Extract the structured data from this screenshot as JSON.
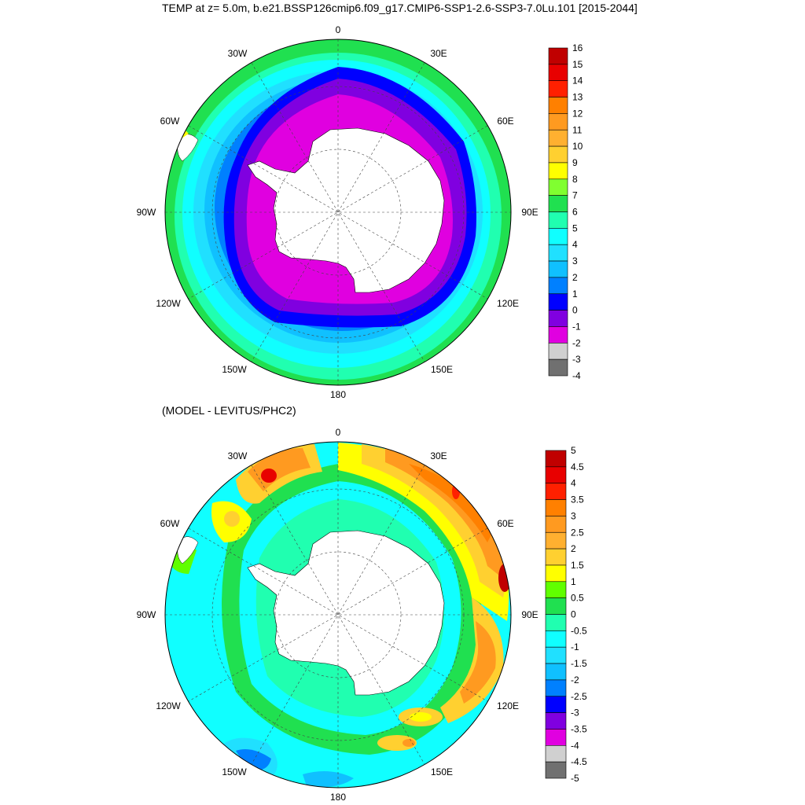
{
  "panel1": {
    "title": "TEMP at z=   5.0m, b.e21.BSSP126cmip6.f09_g17.CMIP6-SSP1-2.6-SSP3-7.0Lu.101 [2015-2044]",
    "lon_labels": {
      "n": "0",
      "ne": "30E",
      "ene": "60E",
      "e": "90E",
      "ese": "120E",
      "se": "150E",
      "s": "180",
      "sw": "150W",
      "wsw": "120W",
      "w": "90W",
      "wnw": "60W",
      "nw": "30W"
    },
    "colorbar": {
      "ticks": [
        "16",
        "15",
        "14",
        "13",
        "12",
        "11",
        "10",
        "9",
        "8",
        "7",
        "6",
        "5",
        "4",
        "3",
        "2",
        "1",
        "0",
        "-1",
        "-2",
        "-3",
        "-4"
      ],
      "colors": [
        "#c00000",
        "#e80000",
        "#ff2000",
        "#ff8000",
        "#ff9a20",
        "#ffb030",
        "#ffd030",
        "#ffff00",
        "#80ff30",
        "#20e050",
        "#20ffb0",
        "#10ffff",
        "#20e0ff",
        "#10c0ff",
        "#0080ff",
        "#0000ff",
        "#8000e0",
        "#e000e0",
        "#d0d0d0",
        "#707070"
      ]
    }
  },
  "panel2": {
    "title": "(MODEL - LEVITUS/PHC2)",
    "lon_labels": {
      "n": "0",
      "ne": "30E",
      "ene": "60E",
      "e": "90E",
      "ese": "120E",
      "se": "150E",
      "s": "180",
      "sw": "150W",
      "wsw": "120W",
      "w": "90W",
      "wnw": "60W",
      "nw": "30W"
    },
    "colorbar": {
      "ticks": [
        "5",
        "4.5",
        "4",
        "3.5",
        "3",
        "2.5",
        "2",
        "1.5",
        "1",
        "0.5",
        "0",
        "-0.5",
        "-1",
        "-1.5",
        "-2",
        "-2.5",
        "-3",
        "-3.5",
        "-4",
        "-4.5",
        "-5"
      ],
      "colors": [
        "#c00000",
        "#e80000",
        "#ff2000",
        "#ff8000",
        "#ff9a20",
        "#ffb030",
        "#ffd030",
        "#ffff00",
        "#60ff00",
        "#20e050",
        "#20ffb0",
        "#10ffff",
        "#20e0ff",
        "#10c0ff",
        "#0080ff",
        "#0000ff",
        "#8000e0",
        "#e000e0",
        "#d0d0d0",
        "#707070"
      ]
    }
  }
}
